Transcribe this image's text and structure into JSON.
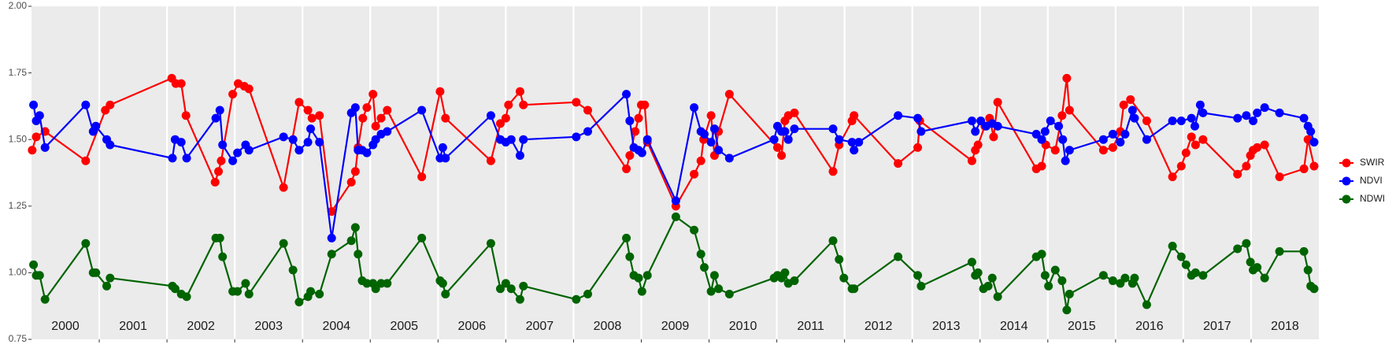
{
  "chart_data": {
    "type": "line",
    "xlim": [
      2000,
      2019
    ],
    "ylim": [
      0.75,
      2.0
    ],
    "yticks": [
      {
        "value": 0.75,
        "label": "0.75"
      },
      {
        "value": 1.0,
        "label": "1.00"
      },
      {
        "value": 1.25,
        "label": "1.25"
      },
      {
        "value": 1.5,
        "label": "1.50"
      },
      {
        "value": 1.75,
        "label": "1.75"
      },
      {
        "value": 2.0,
        "label": "2.00"
      }
    ],
    "year_boundaries": [
      2001,
      2002,
      2003,
      2004,
      2005,
      2006,
      2007,
      2008,
      2009,
      2010,
      2011,
      2012,
      2013,
      2014,
      2015,
      2016,
      2017,
      2018
    ],
    "year_labels": [
      "2000",
      "2001",
      "2002",
      "2003",
      "2004",
      "2005",
      "2006",
      "2007",
      "2008",
      "2009",
      "2010",
      "2011",
      "2012",
      "2013",
      "2014",
      "2015",
      "2016",
      "2017",
      "2018"
    ],
    "legend_position": "right",
    "series": [
      {
        "name": "SWIR",
        "color": "#ff0000",
        "x": [
          2000.01,
          2000.07,
          2000.2,
          2000.8,
          2001.09,
          2001.16,
          2002.07,
          2002.13,
          2002.21,
          2002.28,
          2002.71,
          2002.76,
          2002.8,
          2002.97,
          2003.05,
          2003.14,
          2003.21,
          2003.72,
          2003.95,
          2004.08,
          2004.14,
          2004.25,
          2004.43,
          2004.72,
          2004.78,
          2004.82,
          2004.89,
          2004.95,
          2005.04,
          2005.08,
          2005.16,
          2005.25,
          2005.76,
          2006.03,
          2006.11,
          2006.78,
          2006.92,
          2007.0,
          2007.04,
          2007.21,
          2007.26,
          2008.04,
          2008.21,
          2008.78,
          2008.83,
          2008.91,
          2008.96,
          2009.0,
          2009.05,
          2009.09,
          2009.51,
          2009.78,
          2009.88,
          2009.92,
          2010.03,
          2010.08,
          2010.14,
          2010.3,
          2011.01,
          2011.07,
          2011.12,
          2011.17,
          2011.26,
          2011.83,
          2011.92,
          2012.11,
          2012.14,
          2012.79,
          2013.08,
          2013.11,
          2013.88,
          2013.93,
          2013.97,
          2014.07,
          2014.14,
          2014.2,
          2014.26,
          2014.83,
          2014.91,
          2014.97,
          2015.11,
          2015.21,
          2015.28,
          2015.32,
          2015.82,
          2015.96,
          2016.07,
          2016.12,
          2016.22,
          2016.46,
          2016.84,
          2016.97,
          2017.04,
          2017.12,
          2017.18,
          2017.29,
          2017.8,
          2017.93,
          2017.99,
          2018.03,
          2018.09,
          2018.2,
          2018.42,
          2018.78,
          2018.84,
          2018.93
        ],
        "values": [
          1.46,
          1.51,
          1.53,
          1.42,
          1.61,
          1.63,
          1.73,
          1.71,
          1.71,
          1.59,
          1.34,
          1.38,
          1.42,
          1.67,
          1.71,
          1.7,
          1.69,
          1.32,
          1.64,
          1.61,
          1.58,
          1.59,
          1.23,
          1.34,
          1.38,
          1.47,
          1.58,
          1.62,
          1.67,
          1.55,
          1.58,
          1.61,
          1.36,
          1.68,
          1.58,
          1.42,
          1.56,
          1.58,
          1.63,
          1.68,
          1.63,
          1.64,
          1.61,
          1.39,
          1.44,
          1.53,
          1.58,
          1.63,
          1.63,
          1.49,
          1.25,
          1.37,
          1.42,
          1.5,
          1.59,
          1.44,
          1.53,
          1.67,
          1.47,
          1.44,
          1.57,
          1.59,
          1.6,
          1.38,
          1.48,
          1.57,
          1.59,
          1.41,
          1.47,
          1.57,
          1.42,
          1.46,
          1.48,
          1.55,
          1.58,
          1.51,
          1.64,
          1.39,
          1.4,
          1.48,
          1.46,
          1.59,
          1.73,
          1.61,
          1.46,
          1.47,
          1.53,
          1.63,
          1.65,
          1.57,
          1.36,
          1.4,
          1.45,
          1.51,
          1.48,
          1.5,
          1.37,
          1.4,
          1.44,
          1.46,
          1.47,
          1.48,
          1.36,
          1.39,
          1.5,
          1.4
        ]
      },
      {
        "name": "NDVI",
        "color": "#0000ff",
        "x": [
          2000.03,
          2000.07,
          2000.12,
          2000.2,
          2000.8,
          2000.91,
          2000.95,
          2001.11,
          2001.16,
          2002.08,
          2002.12,
          2002.21,
          2002.29,
          2002.72,
          2002.78,
          2002.82,
          2002.97,
          2003.04,
          2003.16,
          2003.21,
          2003.72,
          2003.86,
          2003.95,
          2004.08,
          2004.12,
          2004.25,
          2004.43,
          2004.72,
          2004.78,
          2004.82,
          2004.88,
          2004.95,
          2005.04,
          2005.08,
          2005.16,
          2005.25,
          2005.76,
          2006.03,
          2006.07,
          2006.11,
          2006.78,
          2006.92,
          2007.0,
          2007.08,
          2007.21,
          2007.26,
          2008.04,
          2008.21,
          2008.78,
          2008.83,
          2008.89,
          2008.96,
          2009.01,
          2009.09,
          2009.51,
          2009.78,
          2009.88,
          2009.93,
          2010.03,
          2010.08,
          2010.14,
          2010.3,
          2010.96,
          2011.01,
          2011.07,
          2011.12,
          2011.17,
          2011.26,
          2011.83,
          2011.92,
          2012.11,
          2012.14,
          2012.21,
          2012.79,
          2013.08,
          2013.13,
          2013.88,
          2013.93,
          2014.01,
          2014.09,
          2014.18,
          2014.26,
          2014.83,
          2014.91,
          2014.96,
          2015.04,
          2015.16,
          2015.22,
          2015.26,
          2015.32,
          2015.82,
          2015.96,
          2016.07,
          2016.14,
          2016.25,
          2016.28,
          2016.46,
          2016.84,
          2016.97,
          2017.12,
          2017.17,
          2017.25,
          2017.29,
          2017.8,
          2017.93,
          2018.03,
          2018.09,
          2018.2,
          2018.42,
          2018.78,
          2018.84,
          2018.88,
          2018.93
        ],
        "values": [
          1.63,
          1.57,
          1.59,
          1.47,
          1.63,
          1.53,
          1.55,
          1.5,
          1.48,
          1.43,
          1.5,
          1.49,
          1.43,
          1.58,
          1.61,
          1.48,
          1.42,
          1.45,
          1.48,
          1.46,
          1.51,
          1.5,
          1.46,
          1.49,
          1.54,
          1.49,
          1.13,
          1.6,
          1.62,
          1.46,
          1.46,
          1.45,
          1.48,
          1.5,
          1.52,
          1.53,
          1.61,
          1.43,
          1.47,
          1.43,
          1.59,
          1.5,
          1.49,
          1.5,
          1.44,
          1.5,
          1.51,
          1.53,
          1.67,
          1.57,
          1.47,
          1.46,
          1.45,
          1.5,
          1.27,
          1.62,
          1.53,
          1.52,
          1.49,
          1.54,
          1.46,
          1.43,
          1.5,
          1.55,
          1.53,
          1.53,
          1.5,
          1.54,
          1.54,
          1.5,
          1.49,
          1.46,
          1.49,
          1.59,
          1.58,
          1.53,
          1.57,
          1.53,
          1.57,
          1.55,
          1.56,
          1.55,
          1.52,
          1.5,
          1.53,
          1.57,
          1.55,
          1.5,
          1.42,
          1.46,
          1.5,
          1.52,
          1.49,
          1.52,
          1.61,
          1.58,
          1.5,
          1.57,
          1.57,
          1.58,
          1.55,
          1.63,
          1.6,
          1.58,
          1.59,
          1.57,
          1.6,
          1.62,
          1.6,
          1.58,
          1.55,
          1.53,
          1.49
        ]
      },
      {
        "name": "NDWI",
        "color": "#006400",
        "x": [
          2000.03,
          2000.07,
          2000.12,
          2000.2,
          2000.8,
          2000.91,
          2000.95,
          2001.11,
          2001.16,
          2002.08,
          2002.12,
          2002.21,
          2002.29,
          2002.72,
          2002.78,
          2002.82,
          2002.97,
          2003.04,
          2003.16,
          2003.21,
          2003.72,
          2003.86,
          2003.95,
          2004.08,
          2004.12,
          2004.25,
          2004.43,
          2004.72,
          2004.78,
          2004.82,
          2004.88,
          2004.95,
          2005.04,
          2005.08,
          2005.16,
          2005.25,
          2005.76,
          2006.03,
          2006.07,
          2006.11,
          2006.78,
          2006.92,
          2007.0,
          2007.08,
          2007.21,
          2007.26,
          2008.04,
          2008.21,
          2008.78,
          2008.83,
          2008.89,
          2008.96,
          2009.01,
          2009.09,
          2009.51,
          2009.78,
          2009.88,
          2009.93,
          2010.03,
          2010.08,
          2010.14,
          2010.3,
          2010.96,
          2011.01,
          2011.07,
          2011.12,
          2011.17,
          2011.26,
          2011.83,
          2011.92,
          2011.99,
          2012.11,
          2012.14,
          2012.79,
          2013.08,
          2013.13,
          2013.88,
          2013.93,
          2013.97,
          2014.05,
          2014.12,
          2014.18,
          2014.26,
          2014.83,
          2014.91,
          2014.96,
          2015.01,
          2015.11,
          2015.21,
          2015.28,
          2015.32,
          2015.82,
          2015.96,
          2016.07,
          2016.14,
          2016.25,
          2016.28,
          2016.46,
          2016.84,
          2016.97,
          2017.04,
          2017.12,
          2017.18,
          2017.29,
          2017.8,
          2017.93,
          2017.99,
          2018.03,
          2018.09,
          2018.2,
          2018.42,
          2018.78,
          2018.84,
          2018.88,
          2018.93
        ],
        "values": [
          1.03,
          0.99,
          0.99,
          0.9,
          1.11,
          1.0,
          1.0,
          0.95,
          0.98,
          0.95,
          0.94,
          0.92,
          0.91,
          1.13,
          1.13,
          1.06,
          0.93,
          0.93,
          0.96,
          0.92,
          1.11,
          1.01,
          0.89,
          0.91,
          0.93,
          0.92,
          1.07,
          1.12,
          1.17,
          1.07,
          0.97,
          0.96,
          0.96,
          0.94,
          0.96,
          0.96,
          1.13,
          0.97,
          0.96,
          0.92,
          1.11,
          0.94,
          0.96,
          0.94,
          0.9,
          0.95,
          0.9,
          0.92,
          1.13,
          1.06,
          0.99,
          0.98,
          0.93,
          0.99,
          1.21,
          1.16,
          1.07,
          1.02,
          0.93,
          0.99,
          0.94,
          0.92,
          0.98,
          0.99,
          0.98,
          1.0,
          0.96,
          0.97,
          1.12,
          1.05,
          0.98,
          0.94,
          0.94,
          1.06,
          0.99,
          0.95,
          1.04,
          0.99,
          1.0,
          0.94,
          0.95,
          0.98,
          0.91,
          1.06,
          1.07,
          0.99,
          0.95,
          1.01,
          0.97,
          0.86,
          0.92,
          0.99,
          0.97,
          0.96,
          0.98,
          0.96,
          0.98,
          0.88,
          1.1,
          1.06,
          1.03,
          0.99,
          1.0,
          0.99,
          1.09,
          1.11,
          1.04,
          1.01,
          1.02,
          0.98,
          1.08,
          1.08,
          1.01,
          0.95,
          0.94
        ]
      }
    ]
  }
}
